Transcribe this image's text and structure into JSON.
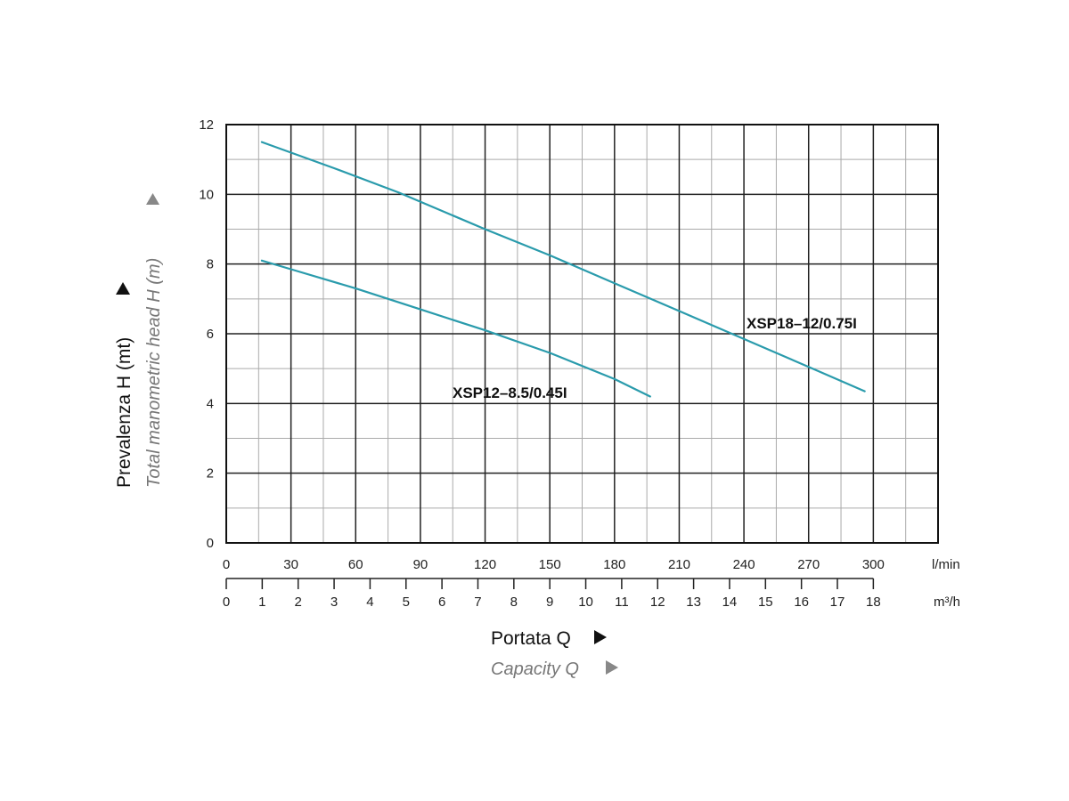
{
  "chart_data": {
    "type": "line",
    "ylabel_main": "Prevalenza H (mt)",
    "ylabel_sub": "Total manometric head H (m)",
    "xlabel_main": "Portata Q",
    "xlabel_sub": "Capacity Q",
    "x_unit_primary": "l/min",
    "x_unit_secondary": "m³/h",
    "xlim": [
      0,
      330
    ],
    "ylim": [
      0,
      12
    ],
    "grid": true,
    "x_ticks_lmin": [
      "0",
      "30",
      "60",
      "90",
      "120",
      "150",
      "180",
      "210",
      "240",
      "270",
      "300"
    ],
    "x_ticks_m3h": [
      "0",
      "1",
      "2",
      "3",
      "4",
      "5",
      "6",
      "7",
      "8",
      "9",
      "10",
      "11",
      "12",
      "13",
      "14",
      "15",
      "16",
      "17",
      "18"
    ],
    "y_ticks": [
      "0",
      "2",
      "4",
      "6",
      "8",
      "10",
      "12"
    ],
    "series": [
      {
        "name": "XSP18–12/0.75I",
        "color": "#2a9bac",
        "x": [
          16.5,
          50,
          80,
          120,
          150,
          180,
          210,
          240,
          270,
          296
        ],
        "y": [
          11.5,
          10.75,
          10.05,
          9.0,
          8.25,
          7.45,
          6.65,
          5.85,
          5.05,
          4.35
        ]
      },
      {
        "name": "XSP12–8.5/0.45I",
        "color": "#2a9bac",
        "x": [
          16.5,
          30,
          60,
          90,
          120,
          150,
          180,
          196.5
        ],
        "y": [
          8.1,
          7.85,
          7.3,
          6.7,
          6.1,
          5.45,
          4.7,
          4.2
        ]
      }
    ]
  }
}
